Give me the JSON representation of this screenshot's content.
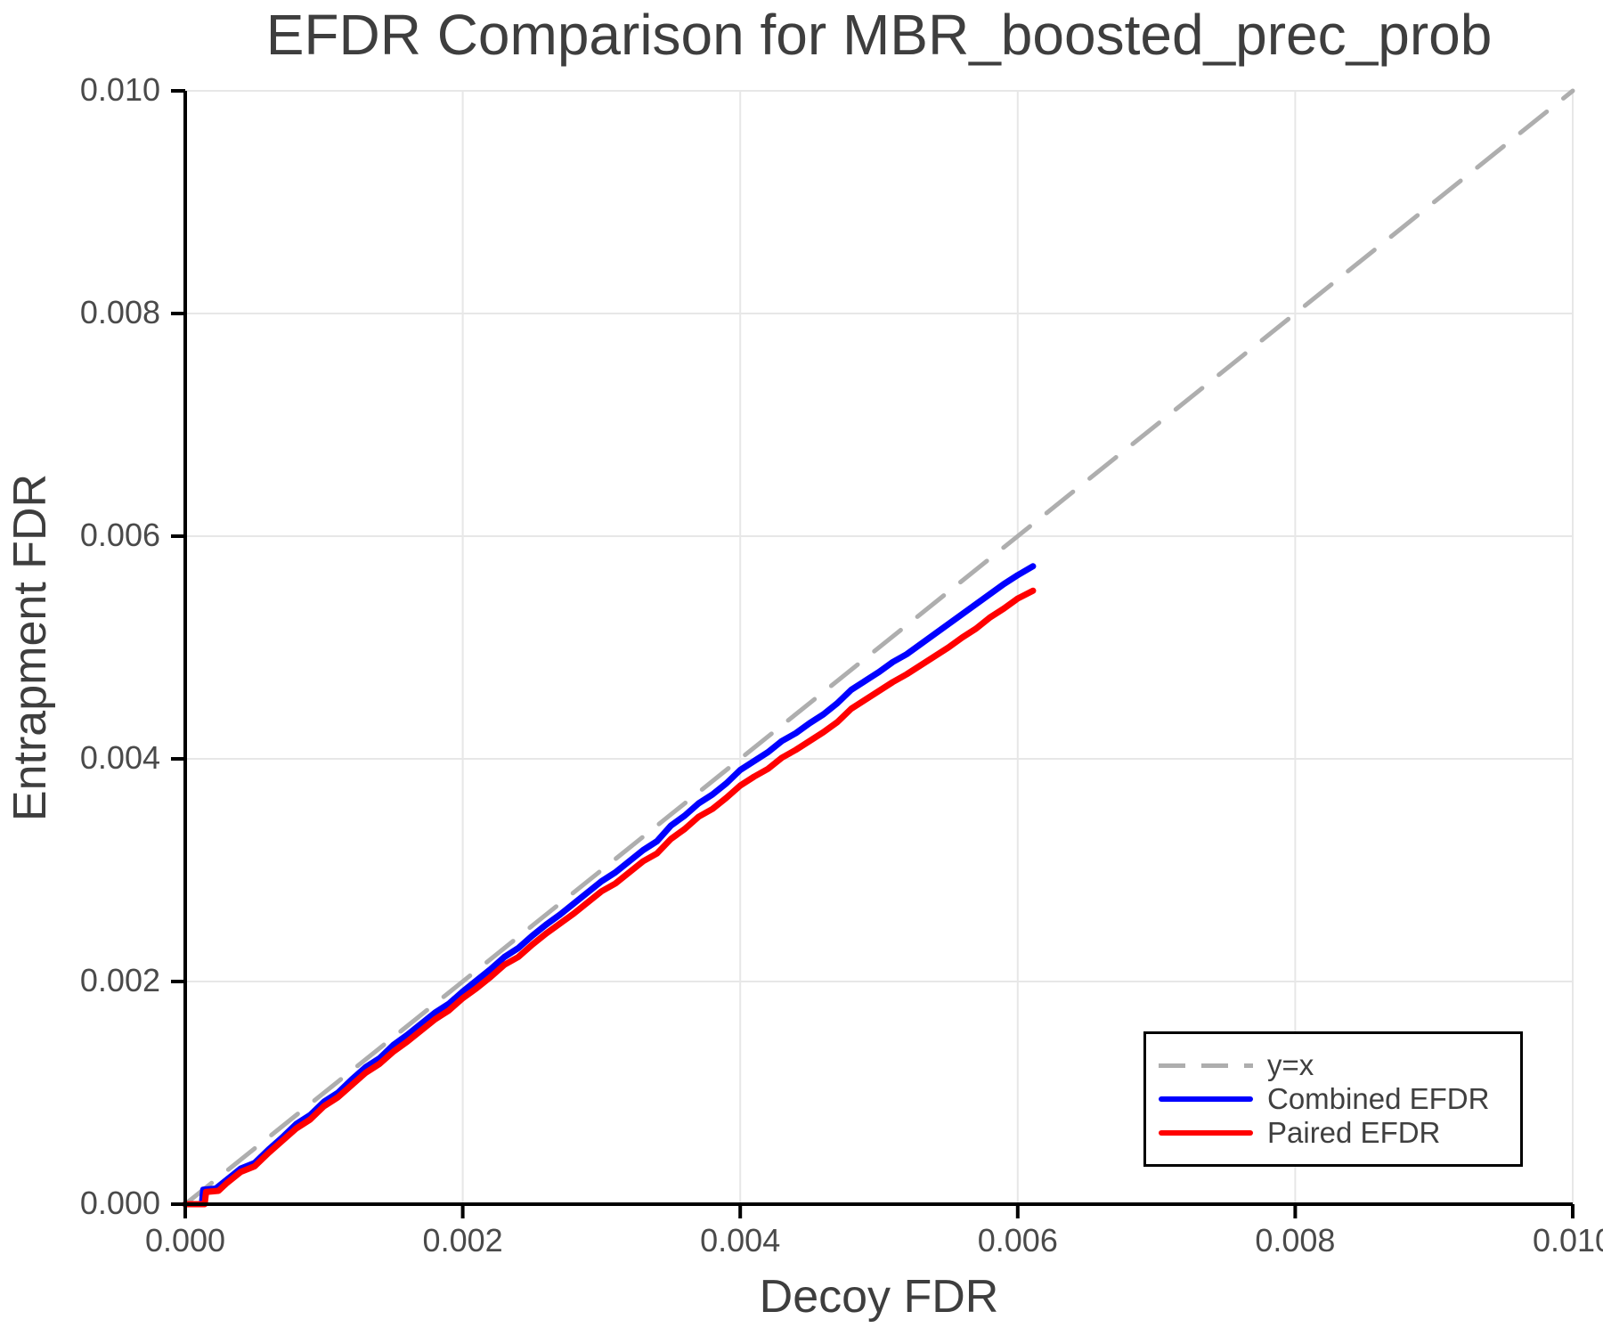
{
  "figure": {
    "background": "#ffffff"
  },
  "chart_data": {
    "type": "line",
    "title": "EFDR Comparison for MBR_boosted_prec_prob",
    "xlabel": "Decoy FDR",
    "ylabel": "Entrapment FDR",
    "xlim": [
      0.0,
      0.01
    ],
    "ylim": [
      0.0,
      0.01
    ],
    "grid": true,
    "legend_position": "lower right",
    "xtick_values": [
      0.0,
      0.002,
      0.004,
      0.006,
      0.008,
      0.01
    ],
    "xtick_labels": [
      "0.000",
      "0.002",
      "0.004",
      "0.006",
      "0.008",
      "0.010"
    ],
    "ytick_values": [
      0.0,
      0.002,
      0.004,
      0.006,
      0.008,
      0.01
    ],
    "ytick_labels": [
      "0.000",
      "0.002",
      "0.004",
      "0.006",
      "0.008",
      "0.010"
    ],
    "colors": {
      "identity_line": "#aeaeae",
      "combined_efdr": "#0000ff",
      "paired_efdr": "#ff0000",
      "grid_line": "#e7e7e7",
      "axis": "#000000",
      "text": "#3e3e3e"
    },
    "legend": {
      "entries": [
        "y=x",
        "Combined EFDR",
        "Paired EFDR"
      ]
    },
    "series": [
      {
        "name": "y=x",
        "style": "dashed",
        "color": "#aeaeae",
        "width": 5,
        "points": [
          [
            0.0,
            0.0
          ],
          [
            0.01,
            0.01
          ]
        ]
      },
      {
        "name": "Combined EFDR",
        "style": "solid",
        "color": "#0000ff",
        "width": 7,
        "points": [
          [
            0.0,
            0.0
          ],
          [
            0.00012,
            0.0
          ],
          [
            0.00013,
            0.00013
          ],
          [
            0.00022,
            0.00014
          ],
          [
            0.0003,
            0.00022
          ],
          [
            0.0004,
            0.00032
          ],
          [
            0.00046,
            0.00035
          ],
          [
            0.0005,
            0.00037
          ],
          [
            0.0006,
            0.00049
          ],
          [
            0.0007,
            0.0006
          ],
          [
            0.0008,
            0.00072
          ],
          [
            0.0009,
            0.0008
          ],
          [
            0.001,
            0.00092
          ],
          [
            0.0011,
            0.001
          ],
          [
            0.0012,
            0.00112
          ],
          [
            0.0013,
            0.00123
          ],
          [
            0.0014,
            0.00131
          ],
          [
            0.0015,
            0.00143
          ],
          [
            0.0016,
            0.00152
          ],
          [
            0.0017,
            0.00162
          ],
          [
            0.0018,
            0.00172
          ],
          [
            0.0019,
            0.0018
          ],
          [
            0.002,
            0.00191
          ],
          [
            0.0021,
            0.00201
          ],
          [
            0.0022,
            0.00211
          ],
          [
            0.0023,
            0.00222
          ],
          [
            0.0024,
            0.0023
          ],
          [
            0.0025,
            0.00241
          ],
          [
            0.0026,
            0.00251
          ],
          [
            0.0027,
            0.0026
          ],
          [
            0.0028,
            0.0027
          ],
          [
            0.0029,
            0.0028
          ],
          [
            0.003,
            0.0029
          ],
          [
            0.0031,
            0.00298
          ],
          [
            0.0032,
            0.00308
          ],
          [
            0.0033,
            0.00318
          ],
          [
            0.0034,
            0.00326
          ],
          [
            0.0035,
            0.0034
          ],
          [
            0.0036,
            0.00349
          ],
          [
            0.0037,
            0.0036
          ],
          [
            0.0038,
            0.00368
          ],
          [
            0.0039,
            0.00378
          ],
          [
            0.004,
            0.0039
          ],
          [
            0.0041,
            0.00398
          ],
          [
            0.0042,
            0.00406
          ],
          [
            0.0043,
            0.00416
          ],
          [
            0.0044,
            0.00423
          ],
          [
            0.0045,
            0.00432
          ],
          [
            0.0046,
            0.0044
          ],
          [
            0.0047,
            0.0045
          ],
          [
            0.0048,
            0.00462
          ],
          [
            0.0049,
            0.0047
          ],
          [
            0.005,
            0.00478
          ],
          [
            0.0051,
            0.00487
          ],
          [
            0.0052,
            0.00494
          ],
          [
            0.0053,
            0.00503
          ],
          [
            0.0054,
            0.00512
          ],
          [
            0.0055,
            0.00521
          ],
          [
            0.0056,
            0.0053
          ],
          [
            0.0057,
            0.00539
          ],
          [
            0.0058,
            0.00548
          ],
          [
            0.0059,
            0.00557
          ],
          [
            0.006,
            0.00565
          ],
          [
            0.00611,
            0.00573
          ]
        ]
      },
      {
        "name": "Paired EFDR",
        "style": "solid",
        "color": "#ff0000",
        "width": 7,
        "points": [
          [
            0.0,
            0.0
          ],
          [
            0.00014,
            0.0
          ],
          [
            0.00015,
            0.00011
          ],
          [
            0.00024,
            0.00012
          ],
          [
            0.0003,
            0.00019
          ],
          [
            0.0004,
            0.00029
          ],
          [
            0.00046,
            0.00032
          ],
          [
            0.0005,
            0.00034
          ],
          [
            0.0006,
            0.00046
          ],
          [
            0.0007,
            0.00057
          ],
          [
            0.0008,
            0.00068
          ],
          [
            0.0009,
            0.00076
          ],
          [
            0.001,
            0.00088
          ],
          [
            0.0011,
            0.00096
          ],
          [
            0.0012,
            0.00107
          ],
          [
            0.0013,
            0.00118
          ],
          [
            0.0014,
            0.00126
          ],
          [
            0.0015,
            0.00137
          ],
          [
            0.0016,
            0.00146
          ],
          [
            0.0017,
            0.00156
          ],
          [
            0.0018,
            0.00166
          ],
          [
            0.0019,
            0.00174
          ],
          [
            0.002,
            0.00185
          ],
          [
            0.0021,
            0.00194
          ],
          [
            0.0022,
            0.00204
          ],
          [
            0.0023,
            0.00215
          ],
          [
            0.0024,
            0.00222
          ],
          [
            0.0025,
            0.00233
          ],
          [
            0.0026,
            0.00243
          ],
          [
            0.0027,
            0.00252
          ],
          [
            0.0028,
            0.00261
          ],
          [
            0.0029,
            0.00271
          ],
          [
            0.003,
            0.00281
          ],
          [
            0.0031,
            0.00288
          ],
          [
            0.0032,
            0.00298
          ],
          [
            0.0033,
            0.00308
          ],
          [
            0.0034,
            0.00315
          ],
          [
            0.0035,
            0.00328
          ],
          [
            0.0036,
            0.00337
          ],
          [
            0.0037,
            0.00348
          ],
          [
            0.0038,
            0.00355
          ],
          [
            0.0039,
            0.00365
          ],
          [
            0.004,
            0.00376
          ],
          [
            0.0041,
            0.00384
          ],
          [
            0.0042,
            0.00391
          ],
          [
            0.0043,
            0.00401
          ],
          [
            0.0044,
            0.00408
          ],
          [
            0.0045,
            0.00416
          ],
          [
            0.0046,
            0.00424
          ],
          [
            0.0047,
            0.00433
          ],
          [
            0.0048,
            0.00445
          ],
          [
            0.0049,
            0.00453
          ],
          [
            0.005,
            0.00461
          ],
          [
            0.0051,
            0.00469
          ],
          [
            0.0052,
            0.00476
          ],
          [
            0.0053,
            0.00484
          ],
          [
            0.0054,
            0.00492
          ],
          [
            0.0055,
            0.005
          ],
          [
            0.0056,
            0.00509
          ],
          [
            0.0057,
            0.00517
          ],
          [
            0.0058,
            0.00527
          ],
          [
            0.0059,
            0.00535
          ],
          [
            0.006,
            0.00544
          ],
          [
            0.00611,
            0.00551
          ]
        ]
      }
    ]
  }
}
